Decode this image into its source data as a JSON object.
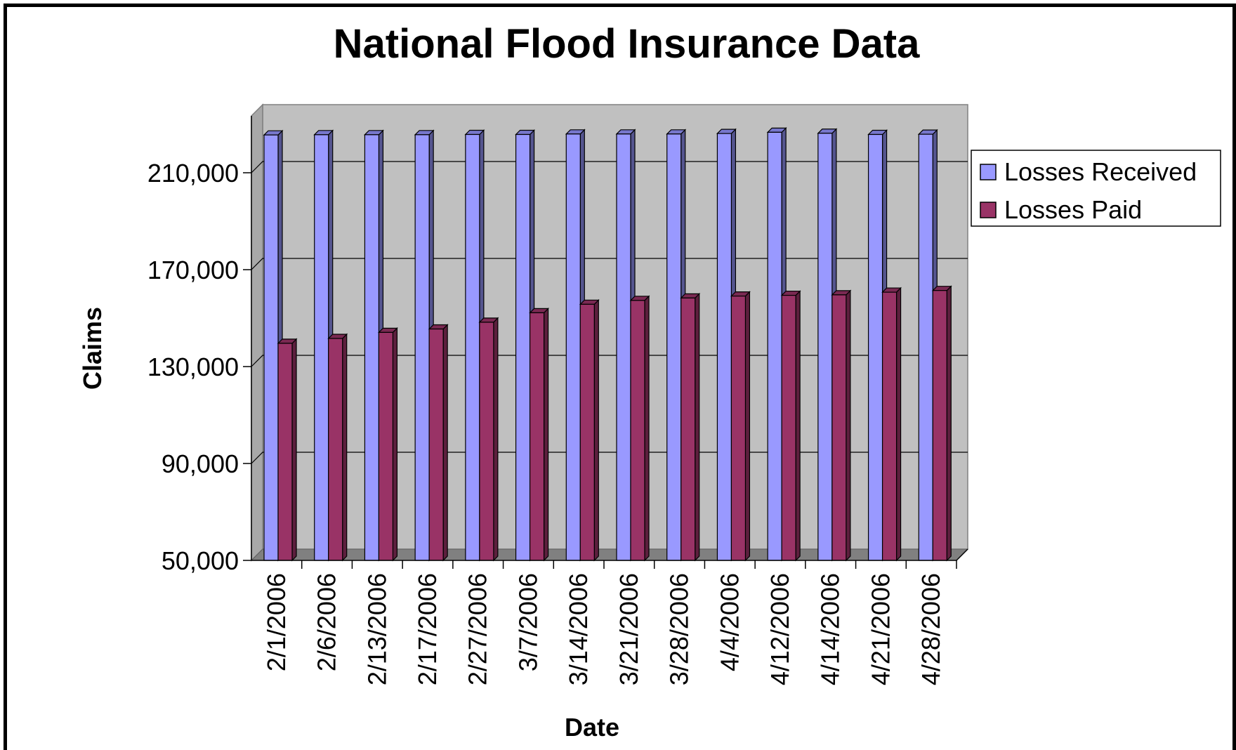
{
  "chart_data": {
    "type": "bar",
    "title": "National Flood Insurance Data",
    "xlabel": "Date",
    "ylabel": "Claims",
    "ylim": [
      50000,
      230000
    ],
    "yticks": [
      50000,
      90000,
      130000,
      170000,
      210000
    ],
    "ytick_labels": [
      "50,000",
      "90,000",
      "130,000",
      "170,000",
      "210,000"
    ],
    "grid": true,
    "style": "3d-clustered-column",
    "legend_position": "right",
    "categories": [
      "2/1/2006",
      "2/6/2006",
      "2/13/2006",
      "2/17/2006",
      "2/27/2006",
      "3/7/2006",
      "3/14/2006",
      "3/21/2006",
      "3/28/2006",
      "4/4/2006",
      "4/12/2006",
      "4/14/2006",
      "4/21/2006",
      "4/28/2006"
    ],
    "series": [
      {
        "name": "Losses Received",
        "color": "#9999ff",
        "side_color": "#55558f",
        "top_color": "#7777cc",
        "values": [
          225600,
          225700,
          225700,
          225700,
          225800,
          225800,
          226000,
          226000,
          226000,
          226200,
          226700,
          226300,
          225800,
          225900
        ]
      },
      {
        "name": "Losses Paid",
        "color": "#993366",
        "side_color": "#5c1f3d",
        "top_color": "#7a2952",
        "values": [
          139600,
          141600,
          144100,
          145500,
          148300,
          152200,
          155700,
          157300,
          158300,
          159100,
          159400,
          159600,
          160700,
          161400
        ]
      }
    ]
  }
}
